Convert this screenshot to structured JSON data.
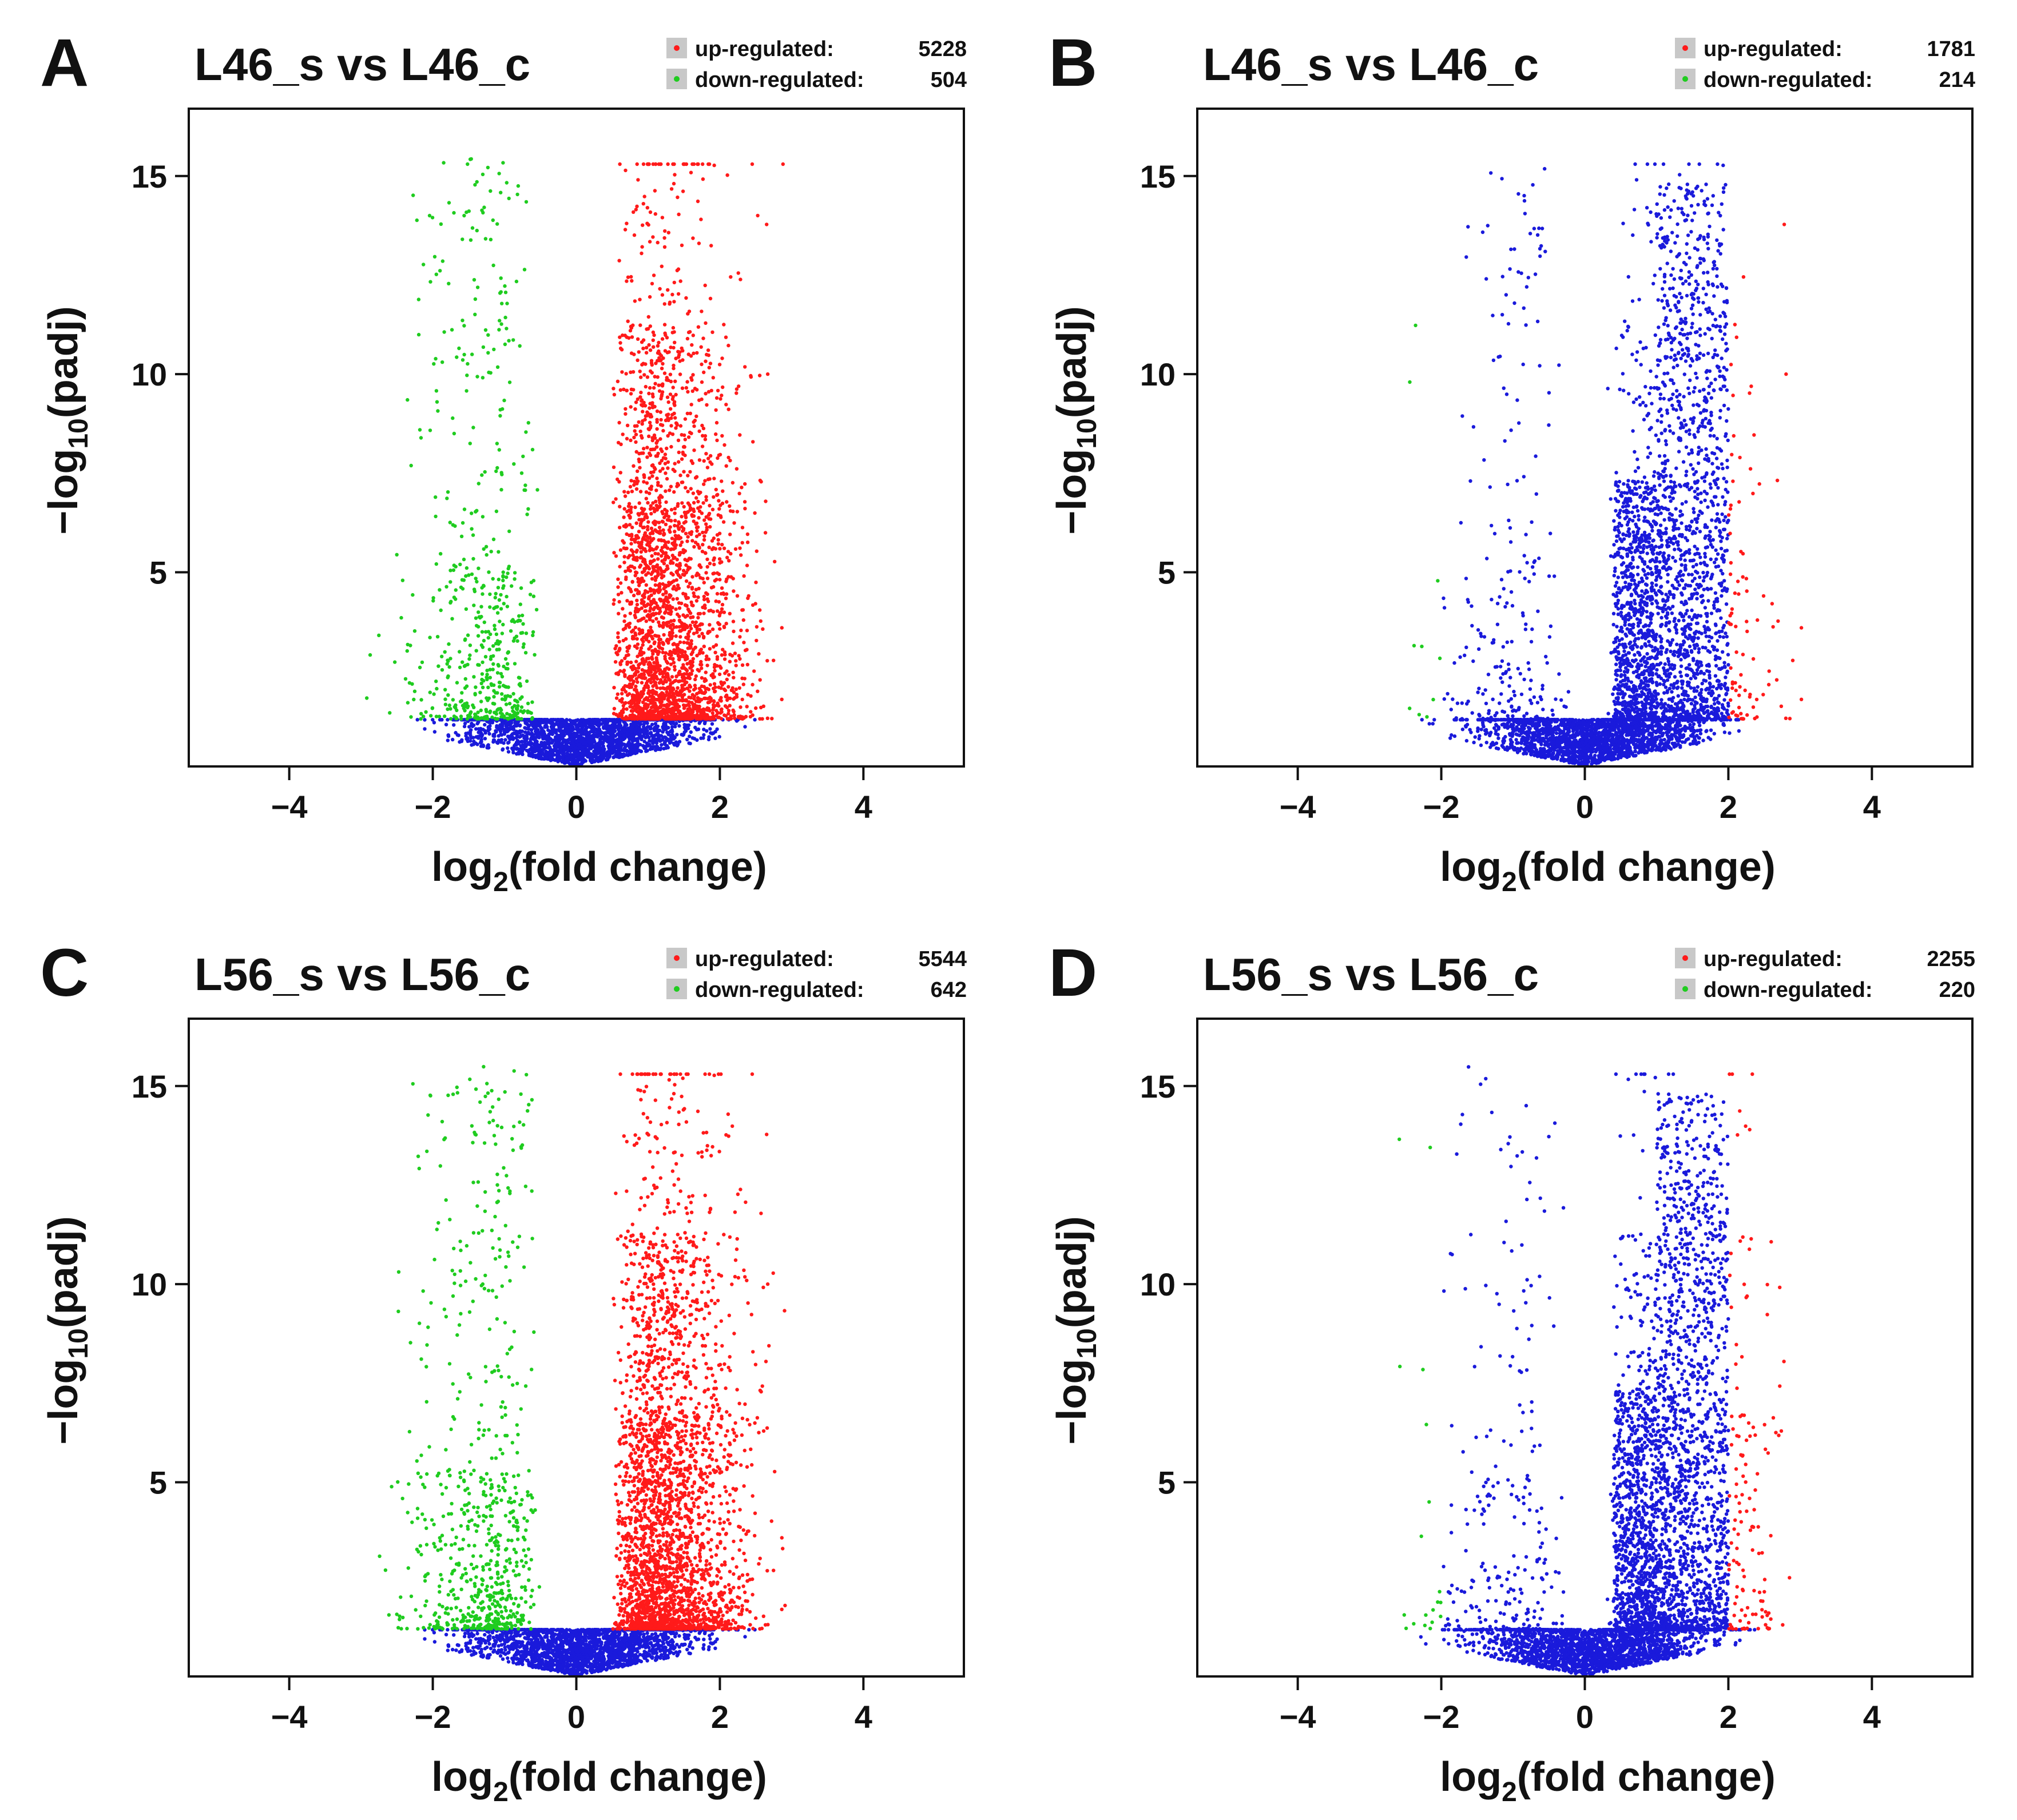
{
  "figure": {
    "colors": {
      "up": "#ff1a1a",
      "down": "#1fcc1f",
      "nonsig": "#1a1adb",
      "frame": "#111111",
      "legend_box": "#c8c8c8"
    }
  },
  "chart_data": [
    {
      "panel": "A",
      "type": "scatter",
      "title": "L46_s vs L46_c",
      "xlabel": "log2(fold change)",
      "ylabel": "−log10(padj)",
      "xlim": [
        -5.4,
        5.4
      ],
      "ylim": [
        0.1,
        16.7
      ],
      "xticks": [
        -4,
        -2,
        0,
        2,
        4
      ],
      "xtick_labels": [
        "−4",
        "−2",
        "0",
        "2",
        "4"
      ],
      "yticks": [
        5,
        10,
        15
      ],
      "ytick_labels": [
        "5",
        "10",
        "15"
      ],
      "fc_threshold": 0.5,
      "padj_threshold": 1.3,
      "blue_band": false,
      "legend": [
        {
          "label": "up-regulated:",
          "count": "5228",
          "series": "up"
        },
        {
          "label": "down-regulated:",
          "count": "504",
          "series": "down"
        }
      ],
      "series": [
        {
          "name": "up-regulated",
          "color": "#ff1a1a",
          "count": 5228
        },
        {
          "name": "down-regulated",
          "color": "#1fcc1f",
          "count": 504
        },
        {
          "name": "not significant",
          "color": "#1a1adb"
        }
      ],
      "grid": false
    },
    {
      "panel": "B",
      "type": "scatter",
      "title": "L46_s vs L46_c",
      "xlabel": "log2(fold change)",
      "ylabel": "−log10(padj)",
      "xlim": [
        -5.4,
        5.4
      ],
      "ylim": [
        0.1,
        16.7
      ],
      "xticks": [
        -4,
        -2,
        0,
        2,
        4
      ],
      "xtick_labels": [
        "−4",
        "−2",
        "0",
        "2",
        "4"
      ],
      "yticks": [
        5,
        10,
        15
      ],
      "ytick_labels": [
        "5",
        "10",
        "15"
      ],
      "fc_threshold": 2,
      "padj_threshold": 1.3,
      "blue_band": true,
      "legend": [
        {
          "label": "up-regulated:",
          "count": "1781",
          "series": "up"
        },
        {
          "label": "down-regulated:",
          "count": "214",
          "series": "down"
        }
      ],
      "series": [
        {
          "name": "up-regulated",
          "color": "#ff1a1a",
          "count": 1781
        },
        {
          "name": "down-regulated",
          "color": "#1fcc1f",
          "count": 214
        },
        {
          "name": "not significant",
          "color": "#1a1adb"
        }
      ],
      "grid": false
    },
    {
      "panel": "C",
      "type": "scatter",
      "title": "L56_s vs L56_c",
      "xlabel": "log2(fold change)",
      "ylabel": "−log10(padj)",
      "xlim": [
        -5.4,
        5.4
      ],
      "ylim": [
        0.1,
        16.7
      ],
      "xticks": [
        -4,
        -2,
        0,
        2,
        4
      ],
      "xtick_labels": [
        "−4",
        "−2",
        "0",
        "2",
        "4"
      ],
      "yticks": [
        5,
        10,
        15
      ],
      "ytick_labels": [
        "5",
        "10",
        "15"
      ],
      "fc_threshold": 0.5,
      "padj_threshold": 1.3,
      "blue_band": false,
      "legend": [
        {
          "label": "up-regulated:",
          "count": "5544",
          "series": "up"
        },
        {
          "label": "down-regulated:",
          "count": "642",
          "series": "down"
        }
      ],
      "series": [
        {
          "name": "up-regulated",
          "color": "#ff1a1a",
          "count": 5544
        },
        {
          "name": "down-regulated",
          "color": "#1fcc1f",
          "count": 642
        },
        {
          "name": "not significant",
          "color": "#1a1adb"
        }
      ],
      "grid": false
    },
    {
      "panel": "D",
      "type": "scatter",
      "title": "L56_s vs L56_c",
      "xlabel": "log2(fold change)",
      "ylabel": "−log10(padj)",
      "xlim": [
        -5.4,
        5.4
      ],
      "ylim": [
        0.1,
        16.7
      ],
      "xticks": [
        -4,
        -2,
        0,
        2,
        4
      ],
      "xtick_labels": [
        "−4",
        "−2",
        "0",
        "2",
        "4"
      ],
      "yticks": [
        5,
        10,
        15
      ],
      "ytick_labels": [
        "5",
        "10",
        "15"
      ],
      "fc_threshold": 2,
      "padj_threshold": 1.3,
      "blue_band": true,
      "legend": [
        {
          "label": "up-regulated:",
          "count": "2255",
          "series": "up"
        },
        {
          "label": "down-regulated:",
          "count": "220",
          "series": "down"
        }
      ],
      "series": [
        {
          "name": "up-regulated",
          "color": "#ff1a1a",
          "count": 2255
        },
        {
          "name": "down-regulated",
          "color": "#1fcc1f",
          "count": 220
        },
        {
          "name": "not significant",
          "color": "#1a1adb"
        }
      ],
      "grid": false
    }
  ]
}
